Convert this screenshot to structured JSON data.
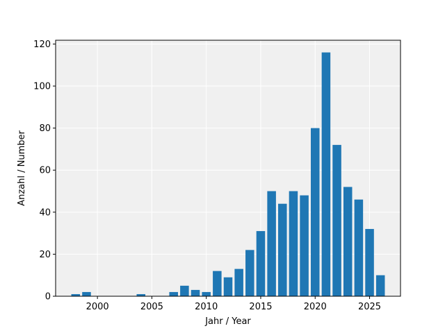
{
  "chart_data": {
    "type": "bar",
    "x": [
      1998,
      1999,
      2004,
      2007,
      2008,
      2009,
      2010,
      2011,
      2012,
      2013,
      2014,
      2015,
      2016,
      2017,
      2018,
      2019,
      2020,
      2021,
      2022,
      2023,
      2024,
      2025,
      2026
    ],
    "values": [
      1,
      2,
      1,
      2,
      5,
      3,
      2,
      12,
      9,
      13,
      22,
      31,
      50,
      44,
      50,
      48,
      80,
      116,
      72,
      52,
      46,
      32,
      10
    ],
    "color": "#1f77b4",
    "xlabel": "Jahr / Year",
    "ylabel": "Anzahl / Number",
    "xlim": [
      1996.16,
      2027.84
    ],
    "xticks": [
      2000,
      2005,
      2010,
      2015,
      2020,
      2025
    ],
    "ylim": [
      0,
      121.8
    ],
    "yticks": [
      0,
      20,
      40,
      60,
      80,
      100,
      120
    ],
    "grid": true,
    "background": "#f0f0f0"
  }
}
